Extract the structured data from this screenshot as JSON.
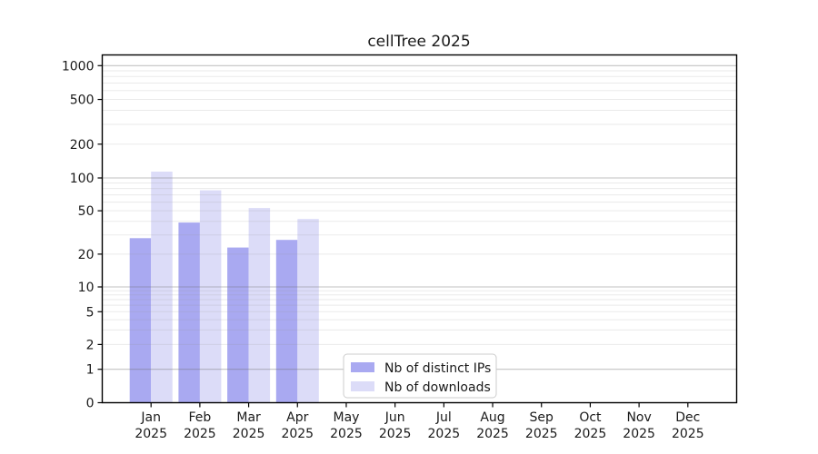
{
  "page": {
    "background": "#ffffff"
  },
  "chart_data": {
    "type": "bar",
    "title": "cellTree 2025",
    "categories": [
      "Jan",
      "Feb",
      "Mar",
      "Apr",
      "May",
      "Jun",
      "Jul",
      "Aug",
      "Sep",
      "Oct",
      "Nov",
      "Dec"
    ],
    "category_sub_label": "2025",
    "series": [
      {
        "name": "Nb of distinct IPs",
        "color": "#a9a9f1",
        "values": [
          28,
          39,
          23,
          27,
          null,
          null,
          null,
          null,
          null,
          null,
          null,
          null
        ]
      },
      {
        "name": "Nb of downloads",
        "color": "#dcdcf8",
        "values": [
          114,
          77,
          53,
          42,
          null,
          null,
          null,
          null,
          null,
          null,
          null,
          null
        ]
      }
    ],
    "xlabel": "",
    "ylabel": "",
    "yscale": "symlog",
    "yticks": [
      0,
      1,
      2,
      5,
      10,
      20,
      50,
      100,
      200,
      500,
      1000
    ],
    "ylim": [
      0,
      1250
    ],
    "grid": true,
    "legend": {
      "position": "bottom-center",
      "entries": [
        "Nb of distinct IPs",
        "Nb of downloads"
      ]
    }
  },
  "colors": {
    "axis": "#000000",
    "tick_text": "#1a1a1a",
    "grid_major": "#c8c8c8",
    "grid_minor": "#eaeaea",
    "legend_border": "#cccccc",
    "legend_bg": "#ffffff"
  }
}
